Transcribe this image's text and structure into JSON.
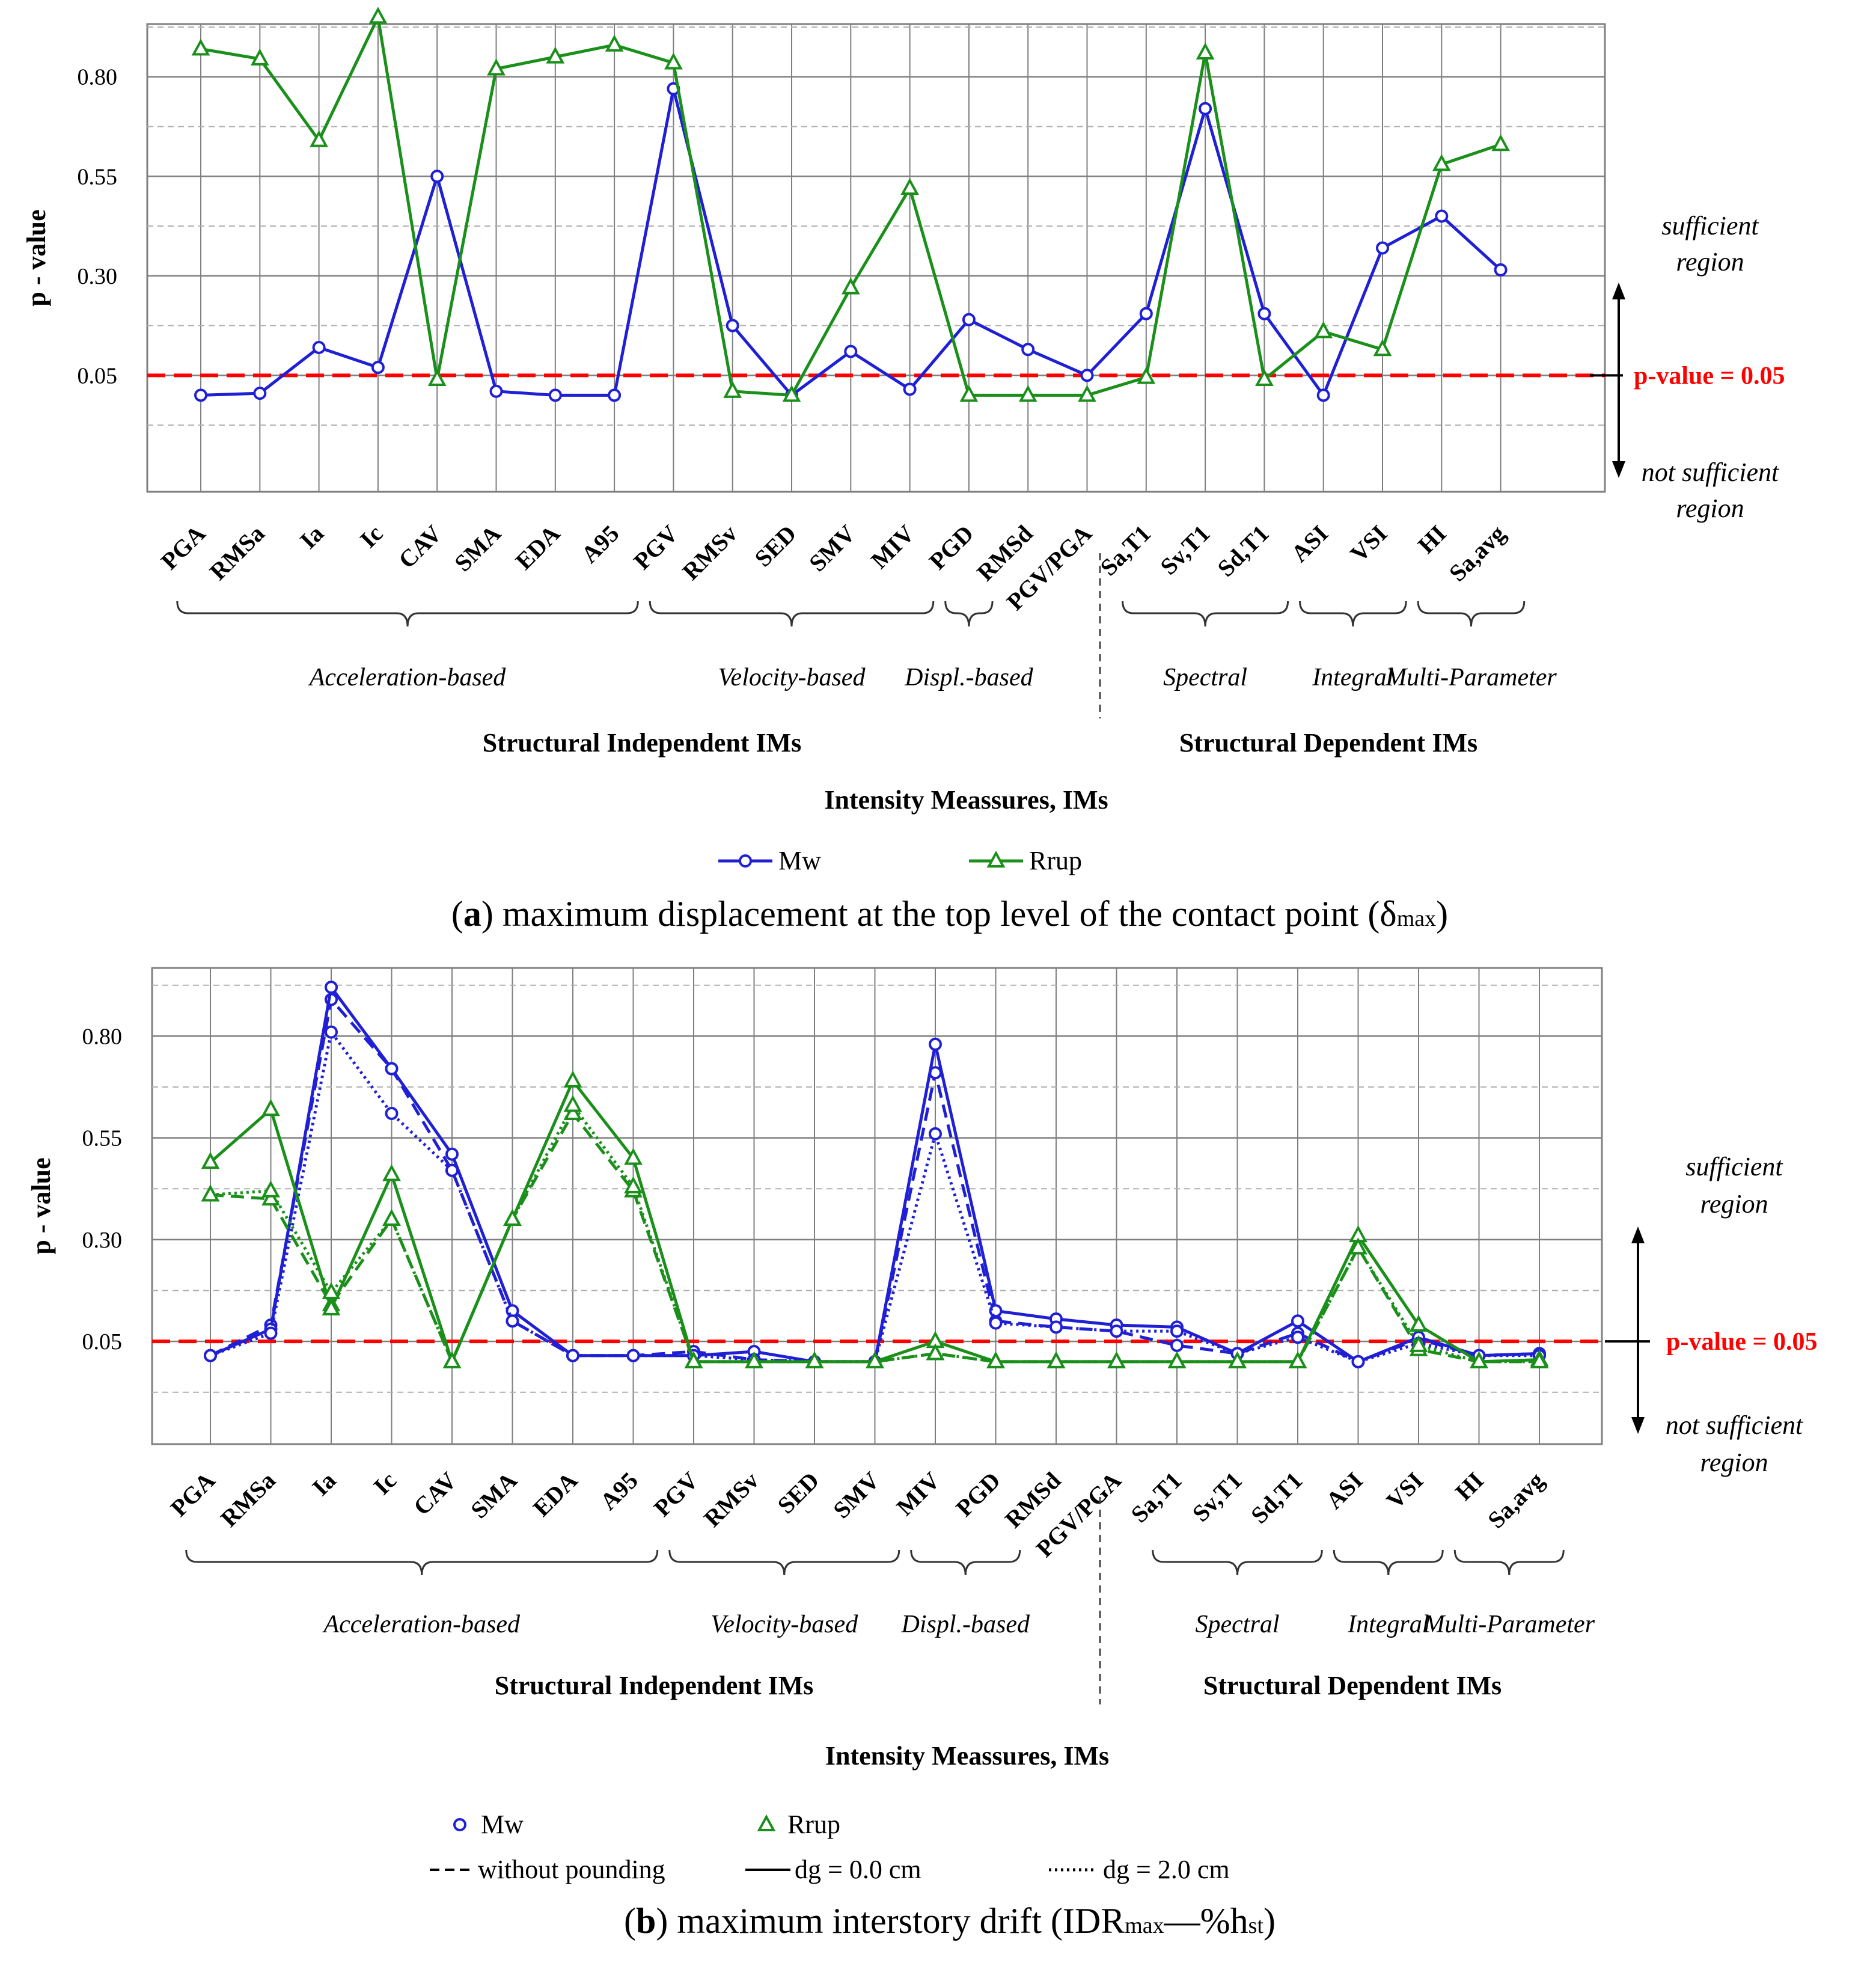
{
  "colors": {
    "mw": "#1f1fd6",
    "rrup": "#1a8f1a",
    "threshold": "#ff0000",
    "grid": "#7f7f7f",
    "minor_grid": "#b0b0b0"
  },
  "chart_data": [
    {
      "type": "line",
      "id": "a",
      "caption": {
        "letter": "a",
        "text": "maximum displacement at the top level of the contact point (δ",
        "sub": "max",
        "close": ")"
      },
      "ylabel": "p - value",
      "xlabel": "Intensity Meassures, IMs",
      "yticks": [
        0.05,
        0.3,
        0.55,
        0.8
      ],
      "ytick_labels": [
        "0.05",
        "0.30",
        "0.55",
        "0.80"
      ],
      "ylim": [
        -0.2425,
        0.9325
      ],
      "threshold": {
        "value": 0.05,
        "label": "p-value = 0.05"
      },
      "regions": {
        "upper": [
          "sufficient",
          "region"
        ],
        "lower": [
          "not sufficient",
          "region"
        ]
      },
      "categories": [
        "PGA",
        "RMSa",
        "Ia",
        "Ic",
        "CAV",
        "SMA",
        "EDA",
        "A95",
        "PGV",
        "RMSv",
        "SED",
        "SMV",
        "MIV",
        "PGD",
        "RMSd",
        "PGV/PGA",
        "Sa,T1",
        "Sv,T1",
        "Sd,T1",
        "ASI",
        "VSI",
        "HI",
        "Sa,avg"
      ],
      "groups": [
        {
          "label": "Acceleration-based",
          "from": 0,
          "to": 7
        },
        {
          "label": "Velocity-based",
          "from": 8,
          "to": 12
        },
        {
          "label": "Displ.-based",
          "from": 13,
          "to": 13
        },
        {
          "label": "Spectral",
          "from": 16,
          "to": 18
        },
        {
          "label": "Integral",
          "from": 19,
          "to": 20
        },
        {
          "label": "Multi-Parameter",
          "from": 21,
          "to": 22
        }
      ],
      "supergroups": [
        "Structural Independent IMs",
        "Structural Dependent IMs"
      ],
      "series": [
        {
          "name": "Mw",
          "marker": "circle",
          "style": "solid",
          "values": [
            0.0,
            0.005,
            0.12,
            0.07,
            0.55,
            0.01,
            0.0,
            0.0,
            0.77,
            0.175,
            0.0,
            0.11,
            0.015,
            0.19,
            0.115,
            0.05,
            0.205,
            0.72,
            0.205,
            0.0,
            0.37,
            0.45,
            0.315
          ]
        },
        {
          "name": "Rrup",
          "marker": "triangle",
          "style": "solid",
          "values": [
            0.87,
            0.845,
            0.64,
            0.95,
            0.04,
            0.82,
            0.85,
            0.88,
            0.835,
            0.01,
            0.0,
            0.27,
            0.52,
            0.0,
            0.0,
            0.0,
            0.045,
            0.86,
            0.04,
            0.16,
            0.115,
            0.58,
            0.63
          ]
        }
      ],
      "legend": [
        "Mw",
        "Rrup"
      ]
    },
    {
      "type": "line",
      "id": "b",
      "caption": {
        "letter": "b",
        "text": "maximum interstory drift (IDR",
        "sub1": "max",
        "mid": "—%h",
        "sub2": "st",
        "close": ")"
      },
      "ylabel": "p - value",
      "xlabel": "Intensity Meassures, IMs",
      "yticks": [
        0.05,
        0.3,
        0.55,
        0.8
      ],
      "ytick_labels": [
        "0.05",
        "0.30",
        "0.55",
        "0.80"
      ],
      "ylim": [
        -0.2025,
        0.9675
      ],
      "threshold": {
        "value": 0.05,
        "label": "p-value = 0.05"
      },
      "regions": {
        "upper": [
          "sufficient",
          "region"
        ],
        "lower": [
          "not sufficient",
          "region"
        ]
      },
      "categories": [
        "PGA",
        "RMSa",
        "Ia",
        "Ic",
        "CAV",
        "SMA",
        "EDA",
        "A95",
        "PGV",
        "RMSv",
        "SED",
        "SMV",
        "MIV",
        "PGD",
        "RMSd",
        "PGV/PGA",
        "Sa,T1",
        "Sv,T1",
        "Sd,T1",
        "ASI",
        "VSI",
        "HI",
        "Sa,avg"
      ],
      "groups": [
        {
          "label": "Acceleration-based",
          "from": 0,
          "to": 7
        },
        {
          "label": "Velocity-based",
          "from": 8,
          "to": 11
        },
        {
          "label": "Displ.-based",
          "from": 12,
          "to": 13
        },
        {
          "label": "Spectral",
          "from": 16,
          "to": 18
        },
        {
          "label": "Integral",
          "from": 19,
          "to": 20
        },
        {
          "label": "Multi-Parameter",
          "from": 21,
          "to": 22
        }
      ],
      "supergroups": [
        "Structural Independent IMs",
        "Structural Dependent IMs"
      ],
      "series": [
        {
          "name": "Mw — without pounding",
          "marker": "circle",
          "style": "dashed",
          "color": "mw",
          "values": [
            0.015,
            0.09,
            0.89,
            0.72,
            0.47,
            0.1,
            0.015,
            0.015,
            0.025,
            0.005,
            0.0,
            0.0,
            0.71,
            0.1,
            0.085,
            0.075,
            0.04,
            0.02,
            0.07,
            0.0,
            0.055,
            0.015,
            0.02
          ]
        },
        {
          "name": "Mw — dg = 0.0 cm",
          "marker": "circle",
          "style": "solid",
          "color": "mw",
          "values": [
            0.015,
            0.08,
            0.92,
            0.72,
            0.51,
            0.125,
            0.015,
            0.015,
            0.015,
            0.025,
            0.0,
            0.0,
            0.78,
            0.125,
            0.105,
            0.09,
            0.085,
            0.02,
            0.1,
            0.0,
            0.06,
            0.015,
            0.02
          ]
        },
        {
          "name": "Mw — dg = 2.0 cm",
          "marker": "circle",
          "style": "dotted",
          "color": "mw",
          "values": [
            0.015,
            0.07,
            0.81,
            0.61,
            0.47,
            0.1,
            0.015,
            0.015,
            0.015,
            0.005,
            0.0,
            0.0,
            0.56,
            0.095,
            0.085,
            0.075,
            0.075,
            0.02,
            0.06,
            0.0,
            0.045,
            0.015,
            0.015
          ]
        },
        {
          "name": "Rrup — without pounding",
          "marker": "triangle",
          "style": "dashed",
          "color": "rrup",
          "values": [
            0.41,
            0.4,
            0.14,
            0.35,
            0.0,
            0.35,
            0.61,
            0.42,
            0.0,
            0.0,
            0.0,
            0.0,
            0.02,
            0.0,
            0.0,
            0.0,
            0.0,
            0.0,
            0.0,
            0.28,
            0.03,
            0.0,
            0.0
          ]
        },
        {
          "name": "Rrup — dg = 0.0 cm",
          "marker": "triangle",
          "style": "solid",
          "color": "rrup",
          "values": [
            0.49,
            0.62,
            0.13,
            0.46,
            0.0,
            0.35,
            0.69,
            0.5,
            0.0,
            0.0,
            0.0,
            0.0,
            0.05,
            0.0,
            0.0,
            0.0,
            0.0,
            0.0,
            0.0,
            0.31,
            0.09,
            0.0,
            0.005
          ]
        },
        {
          "name": "Rrup — dg = 2.0 cm",
          "marker": "triangle",
          "style": "dotted",
          "color": "rrup",
          "values": [
            0.41,
            0.42,
            0.17,
            0.35,
            0.0,
            0.35,
            0.63,
            0.43,
            0.0,
            0.0,
            0.0,
            0.0,
            0.02,
            0.0,
            0.0,
            0.0,
            0.0,
            0.0,
            0.0,
            0.28,
            0.04,
            0.0,
            0.0
          ]
        }
      ],
      "legend": {
        "markers": [
          "Mw",
          "Rrup"
        ],
        "lines": [
          "without pounding",
          "dg = 0.0 cm",
          "dg = 2.0 cm"
        ]
      }
    }
  ]
}
